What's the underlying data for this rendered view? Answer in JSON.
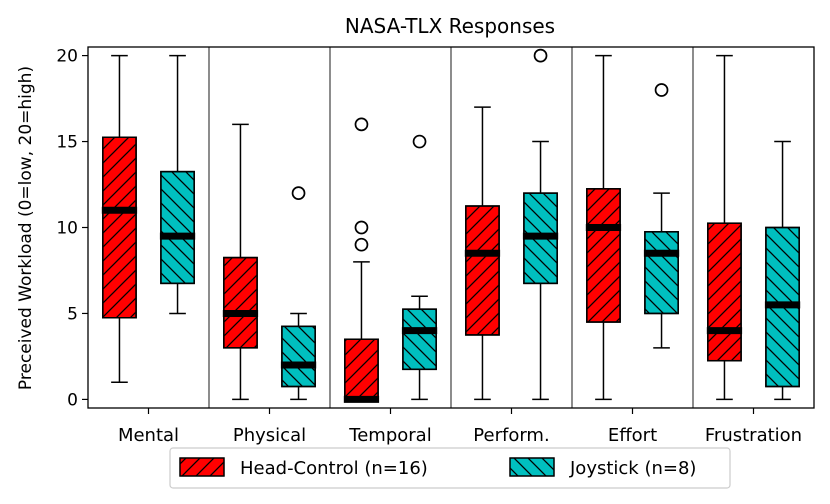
{
  "chart_data": {
    "type": "boxplot",
    "title": "NASA-TLX Responses",
    "xlabel": "",
    "ylabel": "Preceived Workload (0=low, 20=high)",
    "ylim": [
      -0.5,
      20.5
    ],
    "yticks": [
      0,
      5,
      10,
      15,
      20
    ],
    "categories": [
      "Mental",
      "Physical",
      "Temporal",
      "Perform.",
      "Effort",
      "Frustration"
    ],
    "series": [
      {
        "name": "Head-Control (n=16)",
        "color": "#ff0000",
        "hatch": "forward-diagonal",
        "boxes": [
          {
            "whislo": 1,
            "q1": 4.75,
            "med": 11,
            "q3": 15.25,
            "whishi": 20,
            "fliers": []
          },
          {
            "whislo": 0,
            "q1": 3,
            "med": 5,
            "q3": 8.25,
            "whishi": 16,
            "fliers": []
          },
          {
            "whislo": 0,
            "q1": 0,
            "med": 0,
            "q3": 3.5,
            "whishi": 8,
            "fliers": [
              9,
              10,
              16
            ]
          },
          {
            "whislo": 0,
            "q1": 3.75,
            "med": 8.5,
            "q3": 11.25,
            "whishi": 17,
            "fliers": []
          },
          {
            "whislo": 0,
            "q1": 4.5,
            "med": 10,
            "q3": 12.25,
            "whishi": 20,
            "fliers": []
          },
          {
            "whislo": 0,
            "q1": 2.25,
            "med": 4,
            "q3": 10.25,
            "whishi": 20,
            "fliers": []
          }
        ]
      },
      {
        "name": "Joystick (n=8)",
        "color": "#00bfbf",
        "hatch": "back-diagonal",
        "boxes": [
          {
            "whislo": 5,
            "q1": 6.75,
            "med": 9.5,
            "q3": 13.25,
            "whishi": 20,
            "fliers": []
          },
          {
            "whislo": 0,
            "q1": 0.75,
            "med": 2,
            "q3": 4.25,
            "whishi": 5,
            "fliers": [
              12
            ]
          },
          {
            "whislo": 0,
            "q1": 1.75,
            "med": 4,
            "q3": 5.25,
            "whishi": 6,
            "fliers": [
              15
            ]
          },
          {
            "whislo": 0,
            "q1": 6.75,
            "med": 9.5,
            "q3": 12,
            "whishi": 15,
            "fliers": [
              20
            ]
          },
          {
            "whislo": 3,
            "q1": 5,
            "med": 8.5,
            "q3": 9.75,
            "whishi": 12,
            "fliers": [
              18
            ]
          },
          {
            "whislo": 0,
            "q1": 0.75,
            "med": 5.5,
            "q3": 10,
            "whishi": 15,
            "fliers": []
          }
        ]
      }
    ],
    "legend": {
      "position": "bottom-center",
      "entries": [
        "Head-Control (n=16)",
        "Joystick (n=8)"
      ]
    }
  }
}
